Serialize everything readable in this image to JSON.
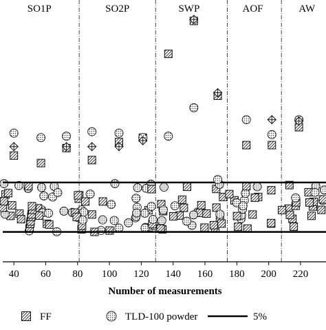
{
  "chart_data": {
    "type": "scatter",
    "xlabel": "Number of measurements",
    "ylabel": "",
    "xlim": [
      33,
      236
    ],
    "ylim": [
      -2.7,
      14.8
    ],
    "x_ticks": [
      40,
      60,
      80,
      100,
      120,
      140,
      160,
      180,
      200,
      220
    ],
    "boundaries": [
      81,
      129,
      174,
      208
    ],
    "regions": [
      {
        "label": "SO1P",
        "x_center": 56
      },
      {
        "label": "SO2P",
        "x_center": 105
      },
      {
        "label": "SWP",
        "x_center": 150
      },
      {
        "label": "AOF",
        "x_center": 190
      },
      {
        "label": "AW",
        "x_center": 224
      }
    ],
    "band_lines": [
      2.6,
      -0.7
    ],
    "band_label": "5%",
    "legend_placement": "bottom",
    "colors": {
      "hatch": "#222222",
      "dot_fill": "#e8e8e8",
      "line": "#000000"
    },
    "series": [
      {
        "name": "FF",
        "marker": "hatched-square",
        "points": [
          [
            40,
            4.4
          ],
          [
            57,
            3.9
          ],
          [
            73,
            4.9
          ],
          [
            89,
            4.1
          ],
          [
            106,
            5.3
          ],
          [
            121,
            5.6
          ],
          [
            137,
            11.2
          ],
          [
            153,
            13.4
          ],
          [
            168,
            8.4
          ],
          [
            186,
            5.1
          ],
          [
            202,
            5.1
          ],
          [
            219,
            6.3
          ]
        ]
      },
      {
        "name": "TLD-100 powder",
        "marker": "dotted-circle",
        "points": [
          [
            40,
            5.9
          ],
          [
            57,
            5.6
          ],
          [
            73,
            5.7
          ],
          [
            89,
            6.0
          ],
          [
            106,
            5.9
          ],
          [
            121,
            5.6
          ],
          [
            137,
            5.7
          ],
          [
            153,
            7.6
          ],
          [
            168,
            2.8
          ],
          [
            186,
            6.8
          ],
          [
            202,
            5.8
          ],
          [
            219,
            6.8
          ]
        ]
      },
      {
        "name": "",
        "marker": "crossed-diamond",
        "points": [
          [
            40,
            5.0
          ],
          [
            73,
            5.0
          ],
          [
            89,
            5.0
          ],
          [
            106,
            5.0
          ],
          [
            121,
            5.4
          ],
          [
            153,
            13.5
          ],
          [
            168,
            8.6
          ],
          [
            202,
            6.8
          ],
          [
            219,
            6.7
          ]
        ]
      }
    ],
    "band_cluster": {
      "x_range": [
        33,
        236
      ],
      "y_range": [
        -0.7,
        2.6
      ]
    }
  },
  "legend": {
    "items": [
      {
        "label": "FF",
        "marker": "hatched-square"
      },
      {
        "label": "TLD-100 powder",
        "marker": "dotted-circle"
      },
      {
        "label": "5%",
        "marker": "line"
      }
    ]
  }
}
